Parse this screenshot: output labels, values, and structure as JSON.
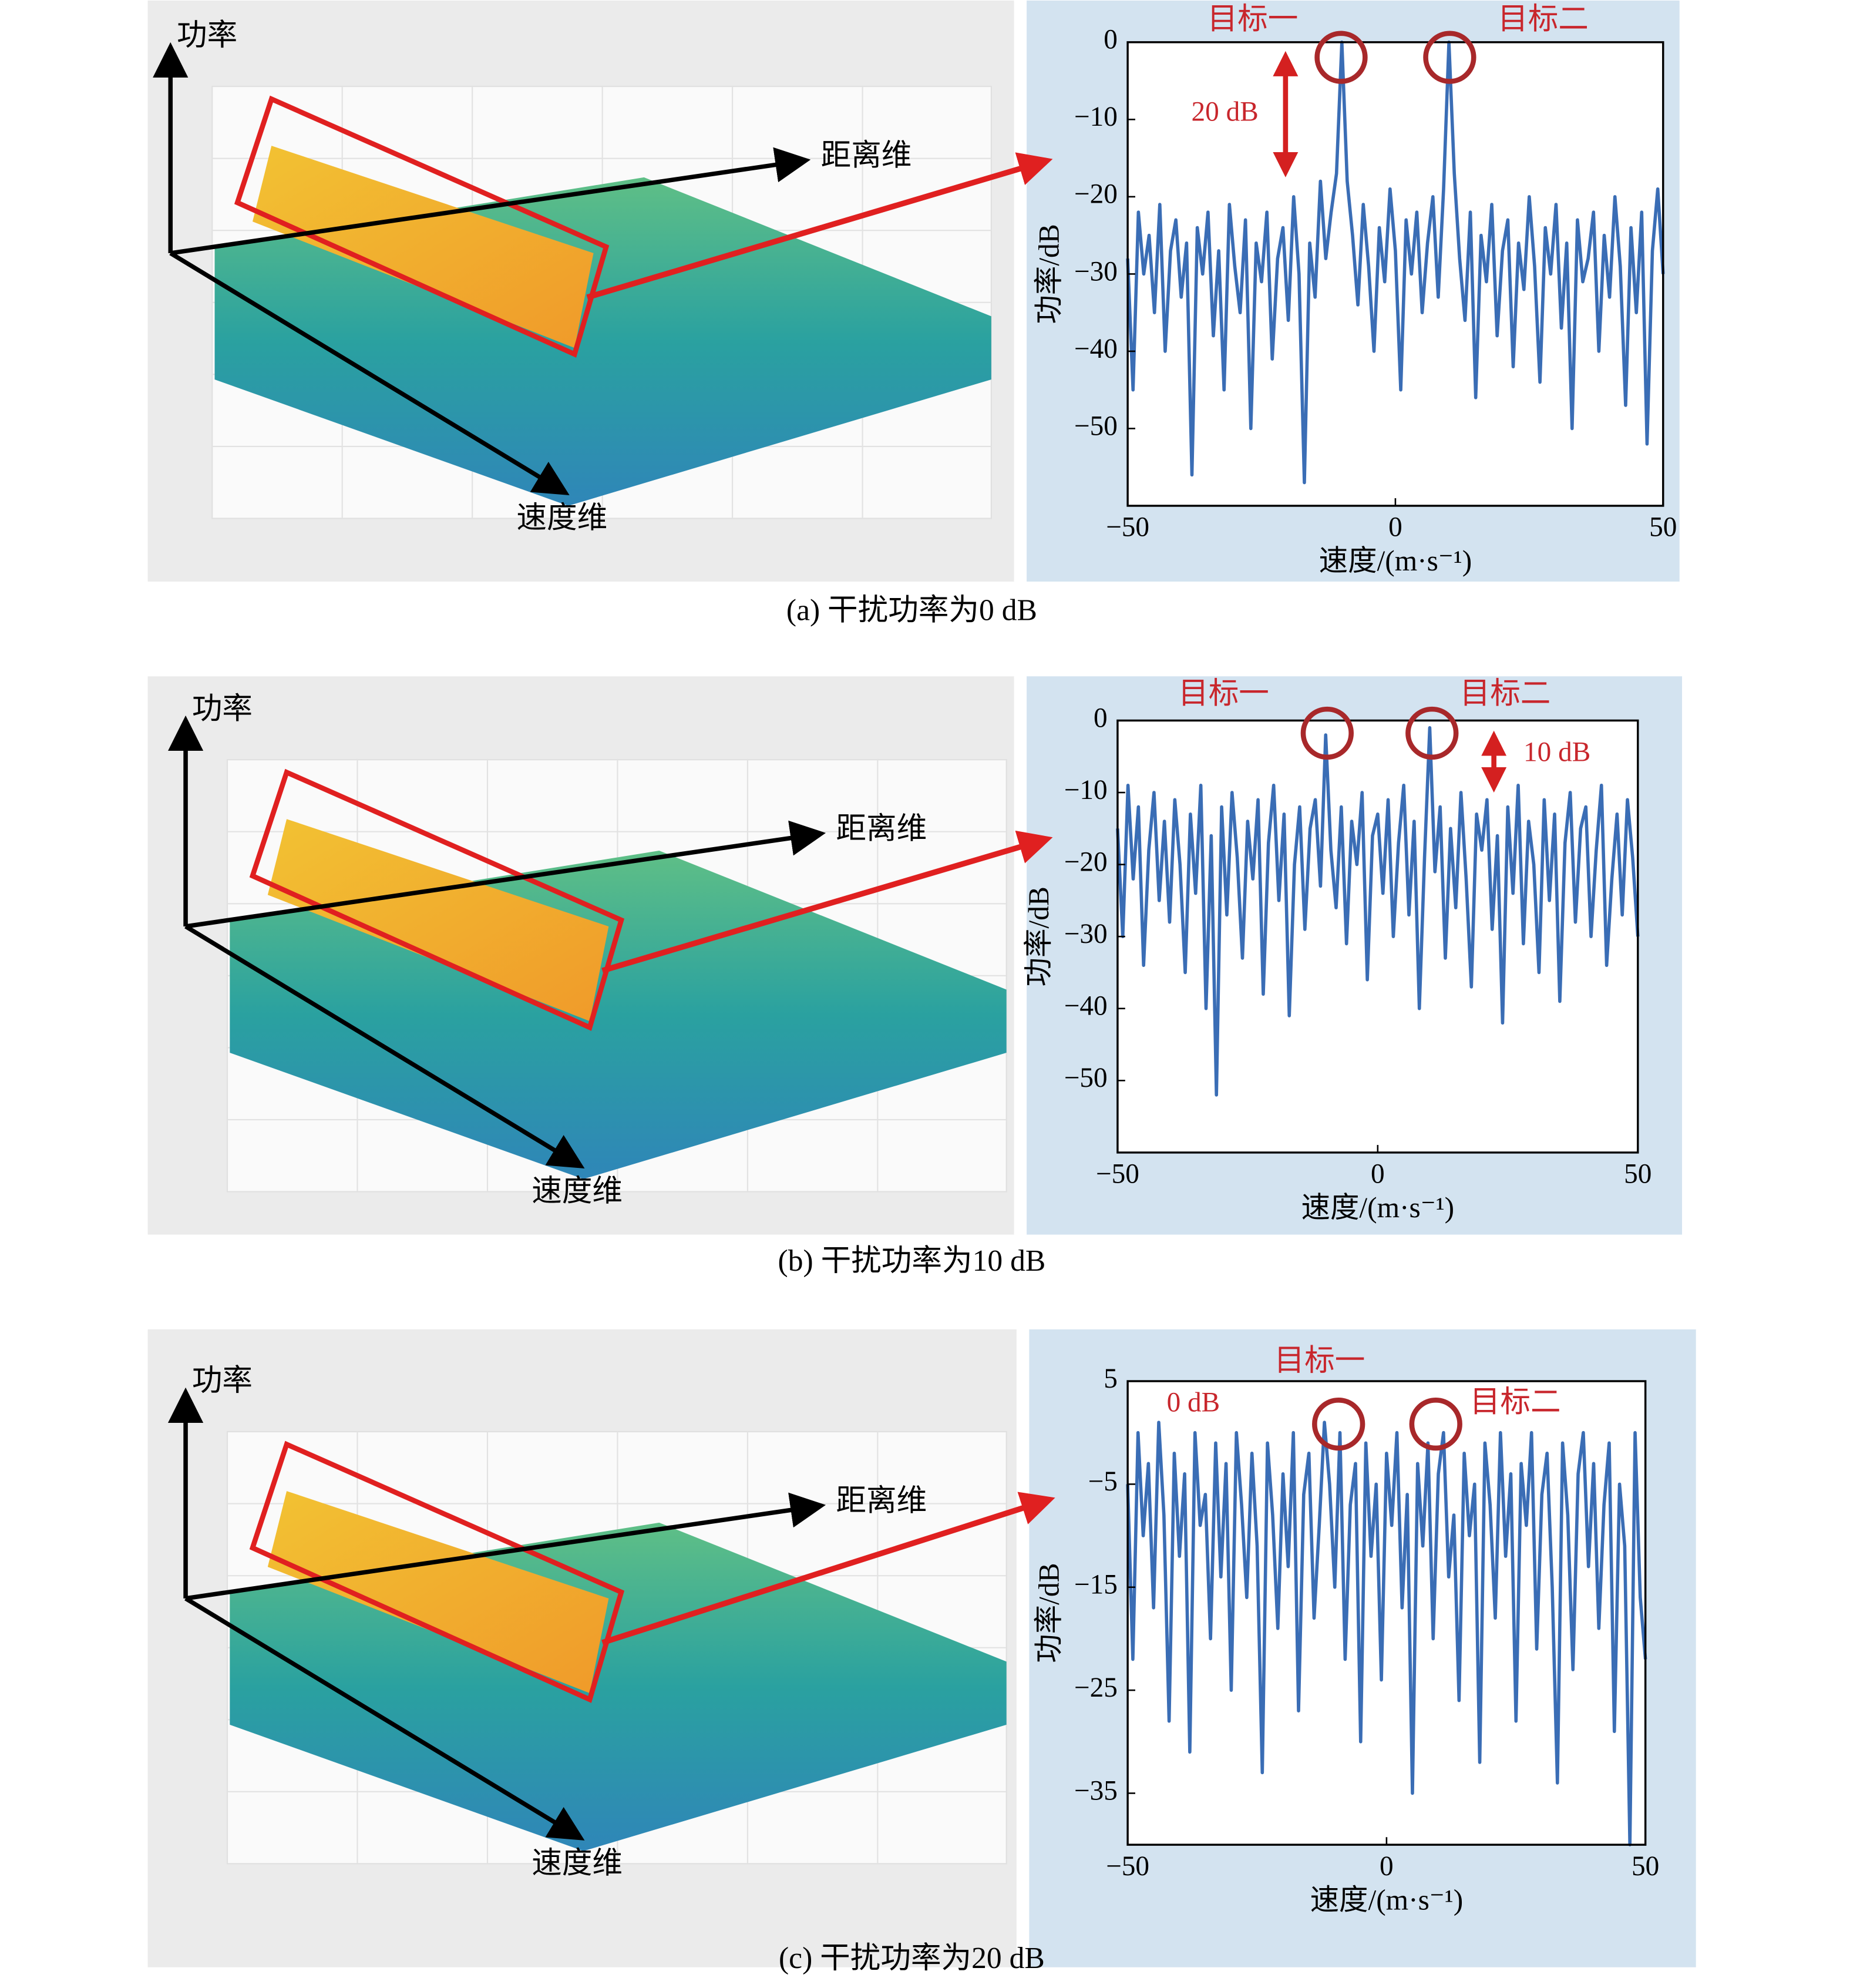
{
  "chart_data": [
    {
      "type": "line",
      "caption": "(a) 干扰功率为0 dB",
      "x_label": "速度/(m·s⁻¹)",
      "y_label": "功率/dB",
      "surface_labels": {
        "power": "功率",
        "range": "距离维",
        "velocity": "速度维"
      },
      "annotations": [
        "目标一",
        "目标二",
        "20 dB"
      ],
      "xlim": [
        -50,
        50
      ],
      "ylim": [
        -60,
        0
      ],
      "xticks": [
        {
          "value": -50,
          "label": "−50"
        },
        0,
        50
      ],
      "yticks": [
        0,
        {
          "value": -10,
          "label": "−10"
        },
        {
          "value": -20,
          "label": "−20"
        },
        {
          "value": -30,
          "label": "−30"
        },
        {
          "value": -40,
          "label": "−40"
        },
        {
          "value": -50,
          "label": "−50"
        }
      ],
      "x": [
        -50,
        -49,
        -48,
        -47,
        -46,
        -45,
        -44,
        -43,
        -42,
        -41,
        -40,
        -39,
        -38,
        -37,
        -36,
        -35,
        -34,
        -33,
        -32,
        -31,
        -30,
        -29,
        -28,
        -27,
        -26,
        -25,
        -24,
        -23,
        -22,
        -21,
        -20,
        -19,
        -18,
        -17,
        -16,
        -15,
        -14,
        -13,
        -12,
        -11,
        -10,
        -9,
        -8,
        -7,
        -6,
        -5,
        -4,
        -3,
        -2,
        -1,
        0,
        1,
        2,
        3,
        4,
        5,
        6,
        7,
        8,
        9,
        10,
        11,
        12,
        13,
        14,
        15,
        16,
        17,
        18,
        19,
        20,
        21,
        22,
        23,
        24,
        25,
        26,
        27,
        28,
        29,
        30,
        31,
        32,
        33,
        34,
        35,
        36,
        37,
        38,
        39,
        40,
        41,
        42,
        43,
        44,
        45,
        46,
        47,
        48,
        49,
        50
      ],
      "series": [
        {
          "color": "#3a6db5",
          "values": [
            -28,
            -45,
            -22,
            -30,
            -25,
            -35,
            -21,
            -40,
            -27,
            -23,
            -33,
            -26,
            -56,
            -24,
            -30,
            -22,
            -38,
            -27,
            -45,
            -21,
            -29,
            -35,
            -23,
            -50,
            -26,
            -31,
            -22,
            -41,
            -28,
            -24,
            -36,
            -20,
            -30,
            -57,
            -26,
            -33,
            -18,
            -28,
            -22,
            -17,
            0,
            -18,
            -25,
            -34,
            -21,
            -29,
            -40,
            -24,
            -31,
            -19,
            -27,
            -45,
            -23,
            -30,
            -22,
            -35,
            -26,
            -20,
            -33,
            -19,
            0,
            -17,
            -28,
            -36,
            -22,
            -46,
            -25,
            -31,
            -21,
            -38,
            -27,
            -23,
            -42,
            -26,
            -32,
            -20,
            -29,
            -44,
            -24,
            -30,
            -21,
            -37,
            -26,
            -50,
            -23,
            -31,
            -28,
            -22,
            -40,
            -25,
            -33,
            -20,
            -29,
            -47,
            -24,
            -35,
            -22,
            -52,
            -27,
            -19,
            -30
          ]
        }
      ]
    },
    {
      "type": "line",
      "caption": "(b) 干扰功率为10 dB",
      "x_label": "速度/(m·s⁻¹)",
      "y_label": "功率/dB",
      "surface_labels": {
        "power": "功率",
        "range": "距离维",
        "velocity": "速度维"
      },
      "annotations": [
        "目标一",
        "目标二",
        "10 dB"
      ],
      "xlim": [
        -50,
        50
      ],
      "ylim": [
        -60,
        0
      ],
      "xticks": [
        {
          "value": -50,
          "label": "−50"
        },
        0,
        50
      ],
      "yticks": [
        0,
        {
          "value": -10,
          "label": "−10"
        },
        {
          "value": -20,
          "label": "−20"
        },
        {
          "value": -30,
          "label": "−30"
        },
        {
          "value": -40,
          "label": "−40"
        },
        {
          "value": -50,
          "label": "−50"
        }
      ],
      "x": [
        -50,
        -49,
        -48,
        -47,
        -46,
        -45,
        -44,
        -43,
        -42,
        -41,
        -40,
        -39,
        -38,
        -37,
        -36,
        -35,
        -34,
        -33,
        -32,
        -31,
        -30,
        -29,
        -28,
        -27,
        -26,
        -25,
        -24,
        -23,
        -22,
        -21,
        -20,
        -19,
        -18,
        -17,
        -16,
        -15,
        -14,
        -13,
        -12,
        -11,
        -10,
        -9,
        -8,
        -7,
        -6,
        -5,
        -4,
        -3,
        -2,
        -1,
        0,
        1,
        2,
        3,
        4,
        5,
        6,
        7,
        8,
        9,
        10,
        11,
        12,
        13,
        14,
        15,
        16,
        17,
        18,
        19,
        20,
        21,
        22,
        23,
        24,
        25,
        26,
        27,
        28,
        29,
        30,
        31,
        32,
        33,
        34,
        35,
        36,
        37,
        38,
        39,
        40,
        41,
        42,
        43,
        44,
        45,
        46,
        47,
        48,
        49,
        50
      ],
      "series": [
        {
          "color": "#3a6db5",
          "values": [
            -15,
            -30,
            -9,
            -22,
            -12,
            -34,
            -18,
            -10,
            -25,
            -14,
            -28,
            -11,
            -20,
            -35,
            -13,
            -24,
            -9,
            -40,
            -16,
            -52,
            -12,
            -27,
            -10,
            -19,
            -33,
            -14,
            -22,
            -11,
            -38,
            -17,
            -9,
            -25,
            -13,
            -41,
            -20,
            -12,
            -29,
            -15,
            -11,
            -23,
            -2,
            -18,
            -26,
            -12,
            -31,
            -14,
            -20,
            -10,
            -36,
            -16,
            -13,
            -24,
            -11,
            -30,
            -17,
            -9,
            -27,
            -14,
            -40,
            -19,
            -1,
            -21,
            -12,
            -33,
            -15,
            -26,
            -10,
            -22,
            -37,
            -13,
            -18,
            -11,
            -29,
            -16,
            -42,
            -12,
            -24,
            -9,
            -31,
            -14,
            -20,
            -35,
            -11,
            -25,
            -13,
            -39,
            -17,
            -10,
            -28,
            -15,
            -12,
            -30,
            -18,
            -9,
            -34,
            -22,
            -13,
            -27,
            -11,
            -19,
            -30
          ]
        }
      ]
    },
    {
      "type": "line",
      "caption": "(c) 干扰功率为20 dB",
      "x_label": "速度/(m·s⁻¹)",
      "y_label": "功率/dB",
      "surface_labels": {
        "power": "功率",
        "range": "距离维",
        "velocity": "速度维"
      },
      "annotations": [
        "目标一",
        "目标二",
        "0 dB"
      ],
      "xlim": [
        -50,
        50
      ],
      "ylim": [
        -40,
        5
      ],
      "xticks": [
        {
          "value": -50,
          "label": "−50"
        },
        0,
        50
      ],
      "yticks": [
        5,
        {
          "value": -5,
          "label": "−5"
        },
        {
          "value": -15,
          "label": "−15"
        },
        {
          "value": -25,
          "label": "−25"
        },
        {
          "value": -35,
          "label": "−35"
        }
      ],
      "x": [
        -50,
        -49,
        -48,
        -47,
        -46,
        -45,
        -44,
        -43,
        -42,
        -41,
        -40,
        -39,
        -38,
        -37,
        -36,
        -35,
        -34,
        -33,
        -32,
        -31,
        -30,
        -29,
        -28,
        -27,
        -26,
        -25,
        -24,
        -23,
        -22,
        -21,
        -20,
        -19,
        -18,
        -17,
        -16,
        -15,
        -14,
        -13,
        -12,
        -11,
        -10,
        -9,
        -8,
        -7,
        -6,
        -5,
        -4,
        -3,
        -2,
        -1,
        0,
        1,
        2,
        3,
        4,
        5,
        6,
        7,
        8,
        9,
        10,
        11,
        12,
        13,
        14,
        15,
        16,
        17,
        18,
        19,
        20,
        21,
        22,
        23,
        24,
        25,
        26,
        27,
        28,
        29,
        30,
        31,
        32,
        33,
        34,
        35,
        36,
        37,
        38,
        39,
        40,
        41,
        42,
        43,
        44,
        45,
        46,
        47,
        48,
        49,
        50
      ],
      "series": [
        {
          "color": "#3a6db5",
          "values": [
            -5,
            -22,
            0,
            -10,
            -3,
            -17,
            1,
            -8,
            -28,
            -2,
            -12,
            -4,
            -31,
            0,
            -9,
            -6,
            -20,
            -1,
            -14,
            -3,
            -25,
            0,
            -7,
            -16,
            -2,
            -11,
            -33,
            -1,
            -8,
            -19,
            -4,
            -13,
            0,
            -27,
            -6,
            -2,
            -18,
            -9,
            1,
            -5,
            -15,
            0,
            -22,
            -7,
            -3,
            -30,
            -1,
            -12,
            -5,
            -24,
            -2,
            -9,
            0,
            -17,
            -6,
            -35,
            -3,
            -11,
            -1,
            -20,
            -4,
            0,
            -14,
            -8,
            -26,
            -2,
            -10,
            -5,
            -32,
            -1,
            -7,
            -18,
            0,
            -12,
            -4,
            -28,
            -3,
            -9,
            0,
            -21,
            -6,
            -2,
            -15,
            -34,
            -1,
            -8,
            -23,
            -4,
            0,
            -13,
            -3,
            -19,
            -7,
            -1,
            -29,
            -5,
            -11,
            -40,
            0,
            -16,
            -22
          ]
        }
      ]
    }
  ]
}
